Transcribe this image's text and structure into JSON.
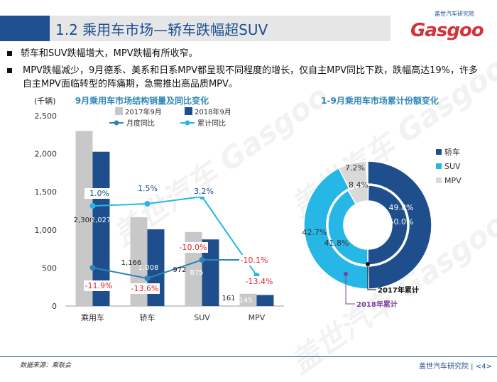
{
  "header": {
    "title": "1.2 乘用车市场—轿车跌幅超SUV"
  },
  "logo": {
    "cn_text": "盖世汽车研究院",
    "en_text": "Gasgoo"
  },
  "bullets": [
    "轿车和SUV跌幅增大，MPV跌幅有所收窄。",
    "MPV跌幅减少，9月德系、美系和日系MPV都呈现不同程度的增长，仅自主MPV同比下跌，跌幅高达19%，许多自主MPV面临转型的阵痛期，急需推出高品质MPV。"
  ],
  "watermark": "盖世汽车 Gasgoo",
  "footer": {
    "source": "数据来源：乘联会",
    "right": "盖世汽车研究院 | <4>"
  },
  "colors": {
    "brand_blue": "#1d4f91",
    "bar_2017": "#c8c8c8",
    "bar_2018": "#1f4e8c",
    "line_month": "#2e86b5",
    "line_cumul": "#26b7e6",
    "pie_mpv": "#d9d9d9",
    "neg_label": "#e0262d",
    "pos_label": "#1d4f91"
  },
  "chart_data": [
    {
      "type": "bar",
      "title": "9月乘用车市场结构销量及同比变化",
      "ylabel": "(千辆)",
      "ylim": [
        0,
        2500
      ],
      "yticks": [
        0,
        500,
        1000,
        1500,
        2000,
        2500
      ],
      "categories": [
        "乘用车",
        "轿车",
        "SUV",
        "MPV"
      ],
      "series": [
        {
          "name": "2017年9月",
          "kind": "bar",
          "values": [
            2300,
            1166,
            972,
            161
          ],
          "labels": [
            "2,300",
            "1,166",
            "972",
            "161"
          ]
        },
        {
          "name": "2018年9月",
          "kind": "bar",
          "values": [
            2027,
            1008,
            875,
            145
          ],
          "labels": [
            "2,027",
            "1,008",
            "875",
            "145"
          ]
        },
        {
          "name": "月度同比",
          "kind": "line",
          "values": [
            -11.9,
            -13.6,
            -10.0,
            -10.1
          ],
          "labels": [
            "-11.9%",
            "-13.6%",
            "-10.0%",
            "-10.1%"
          ]
        },
        {
          "name": "累计同比",
          "kind": "line",
          "values": [
            1.0,
            1.5,
            3.2,
            -13.4
          ],
          "labels": [
            "1.0%",
            "1.5%",
            "3.2%",
            "-13.4%"
          ]
        }
      ],
      "legend_placement": "top"
    },
    {
      "type": "pie",
      "title": "1-9月乘用车市场累计份额变化",
      "categories": [
        "轿车",
        "SUV",
        "MPV"
      ],
      "series": [
        {
          "name": "2017年累计",
          "values": [
            50.0,
            41.8,
            8.4
          ],
          "labels": [
            "50.0%",
            "41.8%",
            "8.4%"
          ]
        },
        {
          "name": "2018年累计",
          "values": [
            49.8,
            42.7,
            7.2
          ],
          "labels": [
            "49.8%",
            "42.7%",
            "7.2%"
          ]
        }
      ],
      "legend_placement": "right"
    }
  ]
}
